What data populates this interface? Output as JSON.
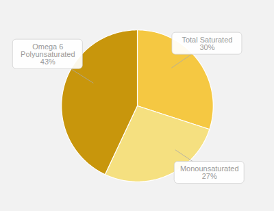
{
  "chart_data": {
    "type": "pie",
    "categories": [
      "Total Saturated",
      "Monounsaturated",
      "Omega 6\nPolyunsaturated"
    ],
    "values": [
      30,
      27,
      43
    ],
    "value_labels": [
      "30%",
      "27%",
      "43%"
    ],
    "colors": [
      "#F5C842",
      "#F5E080",
      "#C8960C"
    ],
    "data_labels": true
  }
}
